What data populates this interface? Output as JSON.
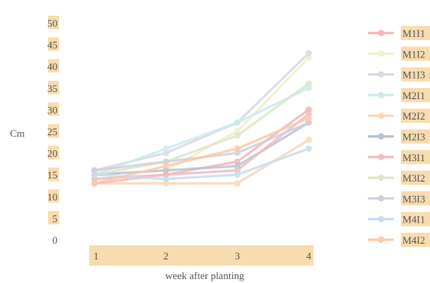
{
  "chart_data": {
    "type": "line",
    "title": "",
    "xlabel": "week after planting",
    "ylabel": "Cm",
    "x": [
      "1",
      "2",
      "3",
      "4"
    ],
    "ylim": [
      0,
      50
    ],
    "yticks": [
      0,
      5,
      10,
      15,
      20,
      25,
      30,
      35,
      40,
      45,
      50
    ],
    "grid": false,
    "legend": "right",
    "colors": {
      "label_highlight": "#f8dcae",
      "axis_band": "#f8dcae",
      "tick_text": "#555555"
    },
    "series": [
      {
        "name": "M1I1",
        "color": "#f4b6b6",
        "values": [
          14,
          15,
          18,
          30
        ]
      },
      {
        "name": "M1I2",
        "color": "#eef0c8",
        "values": [
          15,
          16,
          25,
          42
        ]
      },
      {
        "name": "M1I3",
        "color": "#d7d7e6",
        "values": [
          16,
          20,
          27,
          43
        ]
      },
      {
        "name": "M2I1",
        "color": "#c8ecec",
        "values": [
          15,
          21,
          27,
          35
        ]
      },
      {
        "name": "M2I2",
        "color": "#fbd6b4",
        "values": [
          13,
          13,
          13,
          23
        ]
      },
      {
        "name": "M2I3",
        "color": "#b9c1d6",
        "values": [
          15,
          16,
          17,
          27
        ]
      },
      {
        "name": "M3I1",
        "color": "#f2bcbc",
        "values": [
          13,
          15,
          16,
          29
        ]
      },
      {
        "name": "M3I2",
        "color": "#dbe6c8",
        "values": [
          15,
          18,
          24,
          36
        ]
      },
      {
        "name": "M3I3",
        "color": "#d2cde0",
        "values": [
          16,
          18,
          20,
          27
        ]
      },
      {
        "name": "M4I1",
        "color": "#c6dcf0",
        "values": [
          15,
          14,
          15,
          21
        ]
      },
      {
        "name": "M4I2",
        "color": "#fbc9a6",
        "values": [
          13,
          17,
          21,
          28
        ]
      }
    ]
  }
}
